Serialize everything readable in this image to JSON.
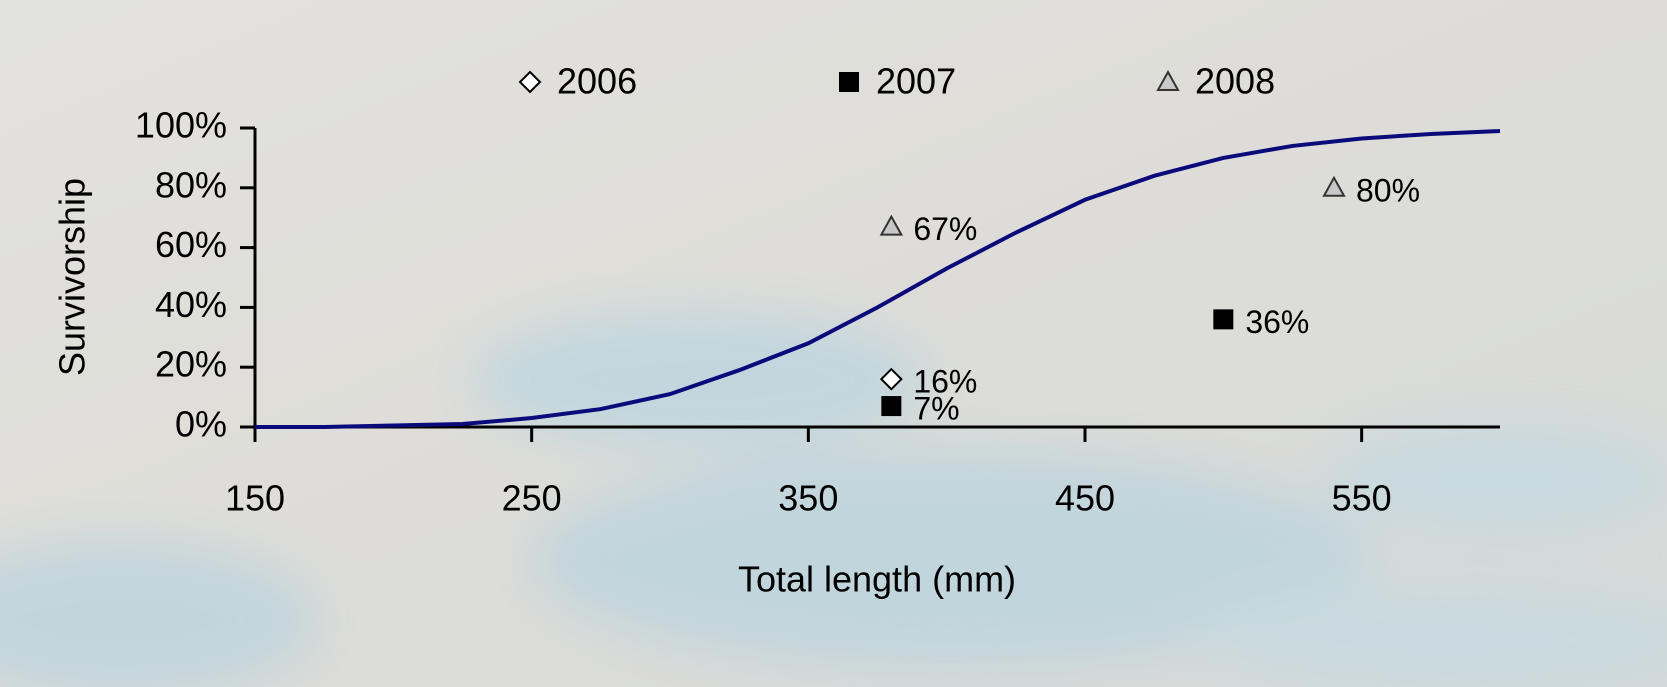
{
  "chart_data": {
    "type": "scatter",
    "xlabel": "Total length (mm)",
    "ylabel": "Survivorship",
    "xlim": [
      150,
      600
    ],
    "xticks": [
      150,
      250,
      350,
      450,
      550
    ],
    "ylim": [
      0,
      100
    ],
    "yticks": [
      {
        "value": 0,
        "label": "0%"
      },
      {
        "value": 20,
        "label": "20%"
      },
      {
        "value": 40,
        "label": "40%"
      },
      {
        "value": 60,
        "label": "60%"
      },
      {
        "value": 80,
        "label": "80%"
      },
      {
        "value": 100,
        "label": "100%"
      }
    ],
    "legend": "top",
    "series": [
      {
        "name": "2006",
        "color": "#ffffff",
        "marker": "diamond",
        "x": [
          380
        ],
        "values": [
          16
        ],
        "value_labels": [
          "16%"
        ]
      },
      {
        "name": "2007",
        "color": "#000000",
        "marker": "square",
        "x": [
          380,
          500
        ],
        "values": [
          7,
          36
        ],
        "value_labels": [
          "7%",
          "36%"
        ]
      },
      {
        "name": "2008",
        "color": "#c8c8c8",
        "marker": "triangle",
        "x": [
          380,
          540
        ],
        "values": [
          67,
          80
        ],
        "value_labels": [
          "67%",
          "80%"
        ]
      }
    ],
    "line": {
      "color": "#0a0a7a",
      "x": [
        150,
        175,
        200,
        225,
        250,
        275,
        300,
        325,
        350,
        375,
        400,
        425,
        450,
        475,
        500,
        525,
        550,
        575,
        600
      ],
      "values": [
        0,
        0,
        0.5,
        1,
        3,
        6,
        11,
        19,
        28,
        40,
        53,
        65,
        76,
        84,
        90,
        94,
        96.5,
        98,
        99
      ]
    }
  }
}
